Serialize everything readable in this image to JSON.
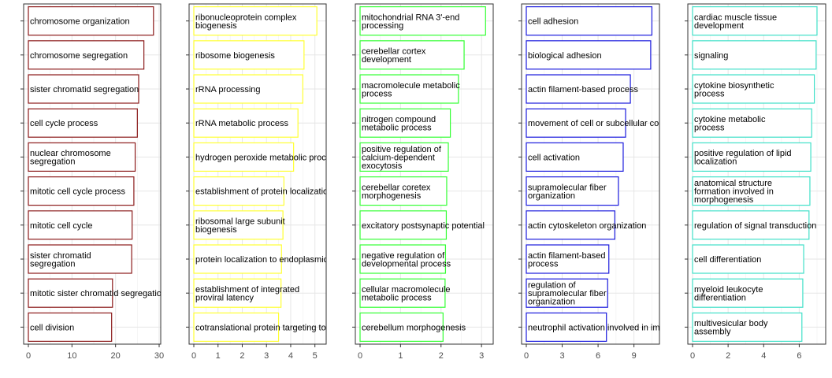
{
  "chart_data": [
    {
      "type": "bar",
      "color": "#8B1A1A",
      "xlim": [
        0,
        30
      ],
      "xticks": [
        "0",
        "10",
        "20",
        "30"
      ],
      "xtick_values": [
        0,
        10,
        20,
        30
      ],
      "grid": true,
      "categories": [
        "chromosome organization",
        "chromosome segregation",
        "sister chromatid segregation",
        "cell cycle process",
        "nuclear chromosome\nsegregation",
        "mitotic cell cycle process",
        "mitotic cell cycle",
        "sister chromatid\nsegregation",
        "mitotic sister chromatid segregation",
        "cell division"
      ],
      "values": [
        28.7,
        26.5,
        25.3,
        25.0,
        24.5,
        24.2,
        23.8,
        23.7,
        19.3,
        19.1
      ]
    },
    {
      "type": "bar",
      "color": "#FFFF33",
      "xlim": [
        0,
        5.4
      ],
      "xticks": [
        "0",
        "1",
        "2",
        "3",
        "4",
        "5"
      ],
      "xtick_values": [
        0,
        1,
        2,
        3,
        4,
        5
      ],
      "grid": true,
      "categories": [
        "ribonucleoprotein complex\nbiogenesis",
        "ribosome biogenesis",
        "rRNA processing",
        "rRNA metabolic process",
        "hydrogen peroxide metabolic process",
        "establishment of protein localization to endoplasmic reticulum",
        "ribosomal large subunit\nbiogenesis",
        "protein localization to endoplasmic reticulum",
        "establishment of integrated\nproviral latency",
        "cotranslational protein targeting to membrane"
      ],
      "values": [
        5.08,
        4.55,
        4.5,
        4.3,
        4.12,
        3.72,
        3.68,
        3.62,
        3.6,
        3.5
      ]
    },
    {
      "type": "bar",
      "color": "#33FF33",
      "xlim": [
        0,
        3.25
      ],
      "xticks": [
        "0",
        "1",
        "2",
        "3"
      ],
      "xtick_values": [
        0,
        1,
        2,
        3
      ],
      "grid": true,
      "categories": [
        "mitochondrial RNA 3'-end\nprocessing",
        "cerebellar cortex\ndevelopment",
        "macromolecule metabolic\nprocess",
        "nitrogen compound\nmetabolic process",
        "positive regulation of\ncalcium-dependent\nexocytosis",
        "cerebellar coretex\nmorphogenesis",
        "excitatory postsynaptic potential",
        "negative regulation of\ndevelopmental process",
        "cellular macromolecule\nmetabolic process",
        "cerebellum morphogenesis"
      ],
      "values": [
        3.1,
        2.57,
        2.43,
        2.23,
        2.18,
        2.14,
        2.13,
        2.11,
        2.1,
        2.05
      ]
    },
    {
      "type": "bar",
      "color": "#1A1ADD",
      "xlim": [
        0,
        11
      ],
      "xticks": [
        "0",
        "3",
        "6",
        "9"
      ],
      "xtick_values": [
        0,
        3,
        6,
        9
      ],
      "grid": true,
      "categories": [
        "cell adhesion",
        "biological adhesion",
        "actin filament-based process",
        "movement of cell or subcellular component",
        "cell activation",
        "supramolecular fiber\norganization",
        "actin cytoskeleton organization",
        "actin filament-based\nprocess",
        "regulation of\nsupramolecular fiber\norganization",
        "neutrophil activation involved in immune response"
      ],
      "values": [
        10.5,
        10.4,
        8.7,
        8.3,
        8.1,
        7.7,
        7.4,
        6.9,
        6.8,
        6.7
      ]
    },
    {
      "type": "bar",
      "color": "#40E0C8",
      "xlim": [
        0,
        7.4
      ],
      "xticks": [
        "0",
        "2",
        "4",
        "6"
      ],
      "xtick_values": [
        0,
        2,
        4,
        6
      ],
      "grid": true,
      "categories": [
        "cardiac muscle tissue\ndevelopment",
        "signaling",
        "cytokine biosynthetic\nprocess",
        "cytokine metabolic\nprocess",
        "positive regulation of lipid\nlocalization",
        "anatomical structure\nformation involved in\nmorphogenesis",
        "regulation of signal transduction",
        "cell differentiation",
        "myeloid leukocyte\ndifferentiation",
        "multivesicular body\nassembly"
      ],
      "values": [
        7.0,
        6.95,
        6.85,
        6.7,
        6.65,
        6.6,
        6.55,
        6.25,
        6.2,
        6.15
      ]
    }
  ]
}
